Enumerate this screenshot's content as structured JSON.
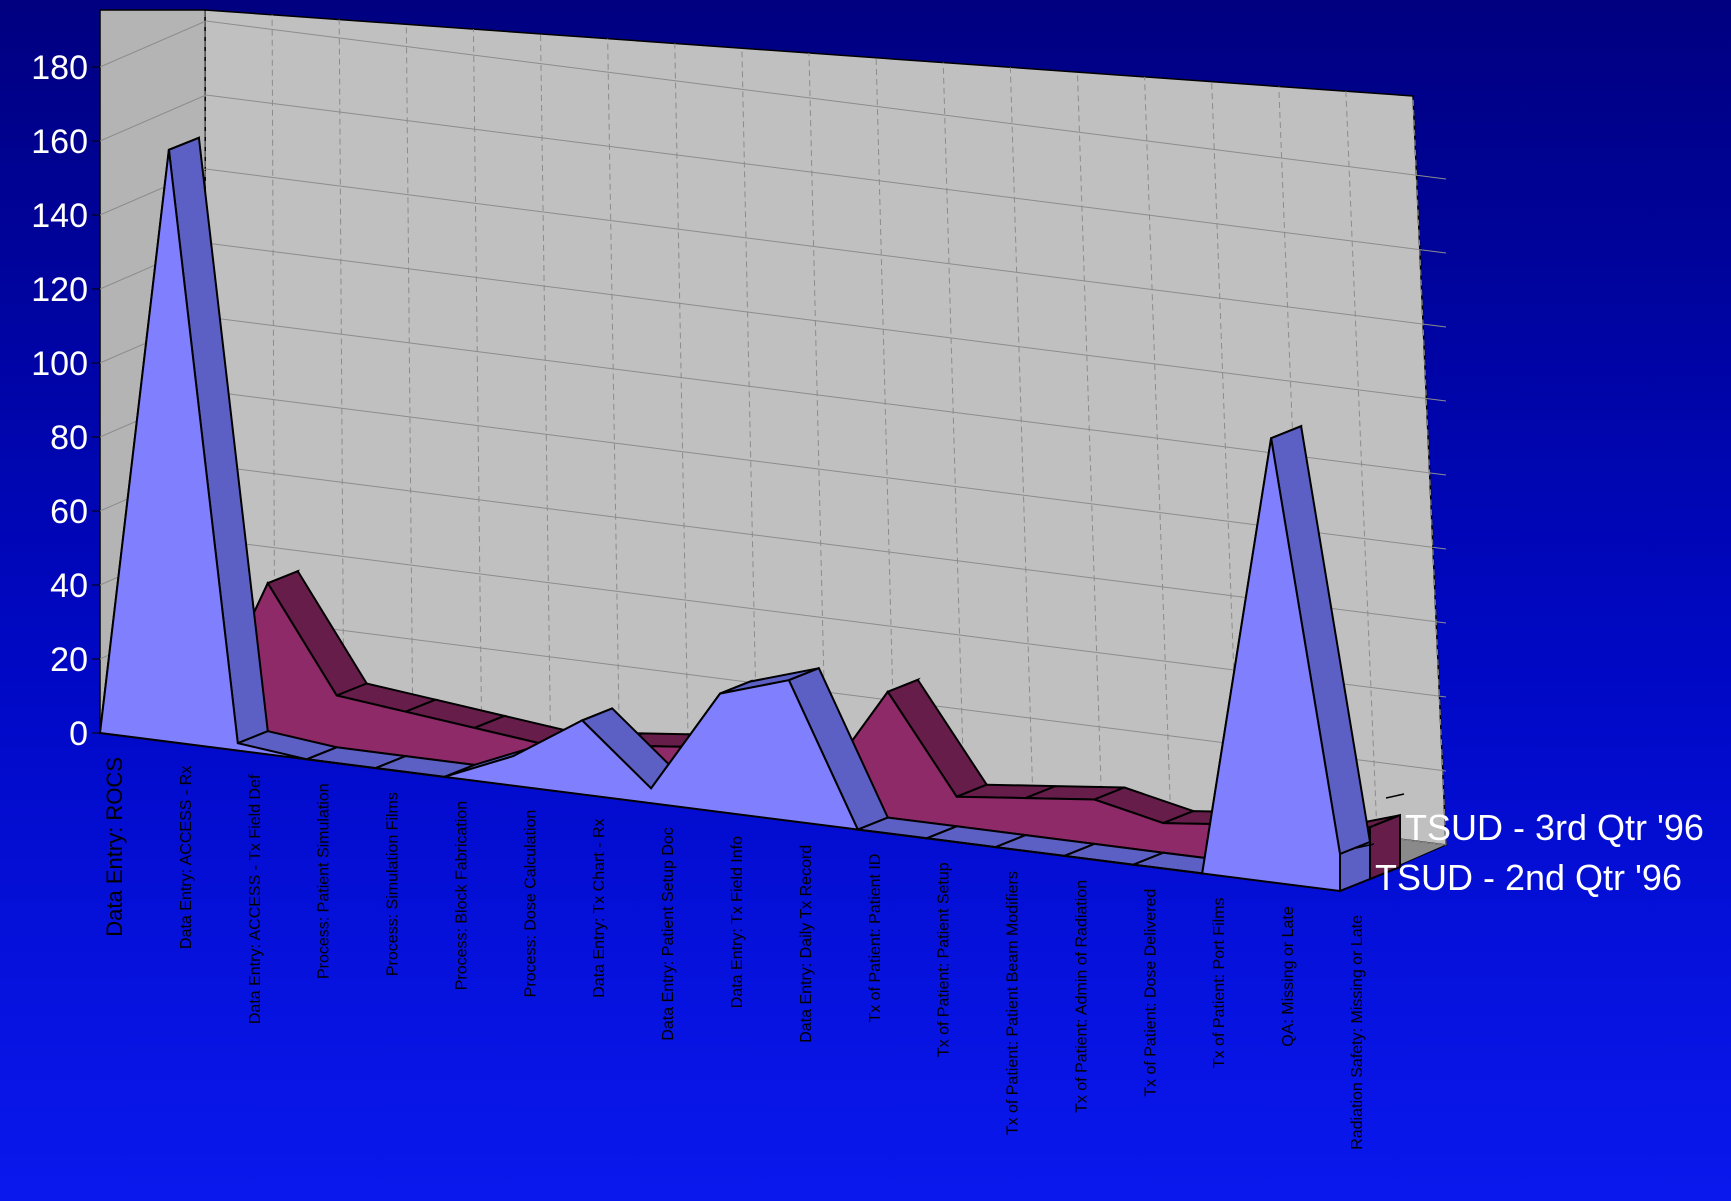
{
  "chart_data": {
    "type": "area",
    "style": "3d-ribbon",
    "categories": [
      "Data Entry: ROCS",
      "Data Entry: ACCESS - Rx",
      "Data Entry: ACCESS - Tx Field Def",
      "Process: Patient Simulation",
      "Process: Simulation Films",
      "Process: Block Fabrication",
      "Process: Dose Calculation",
      "Data Entry: Tx Chart - Rx",
      "Data Entry: Patient Setup Doc",
      "Data Entry: Tx Field Info",
      "Data Entry: Daily Tx Record",
      "Tx of Patient: Patient ID",
      "Tx of Patient: Patient Setup",
      "Tx of Patient: Patient Beam Modifiers",
      "Tx of Patient: Admin of Radiation",
      "Tx of Patient: Dose Delivered",
      "Tx of Patient: Port Films",
      "QA: Missing or Late",
      "Radiation Safety: Missing or Late"
    ],
    "series": [
      {
        "name": "TSUD - 2nd Qtr '96",
        "values": [
          0,
          160,
          2,
          0,
          0,
          0,
          8,
          20,
          4,
          32,
          38,
          0,
          0,
          0,
          0,
          0,
          0,
          120,
          10
        ]
      },
      {
        "name": "TSUD - 3rd Qtr '96",
        "values": [
          0,
          0,
          42,
          14,
          12,
          10,
          8,
          10,
          12,
          8,
          6,
          34,
          8,
          10,
          12,
          8,
          10,
          8,
          14
        ]
      }
    ],
    "yticks": [
      0,
      20,
      40,
      60,
      80,
      100,
      120,
      140,
      160,
      180
    ],
    "ylim": [
      0,
      180
    ],
    "title": "",
    "xlabel": "",
    "ylabel": "",
    "grid": true,
    "legend": "right"
  },
  "colors": {
    "series_front_fill": "#8080ff",
    "series_front_side": "#5c5fc4",
    "series_back_fill": "#661d4a",
    "series_back_side": "#8e2a67",
    "wall": "#c0c0c0",
    "floor": "#8a8a8a"
  }
}
